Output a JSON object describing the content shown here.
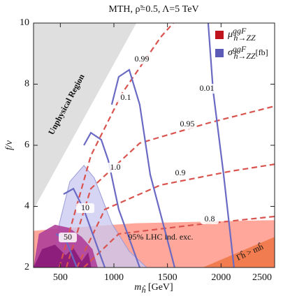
{
  "chart_data": {
    "type": "contour",
    "title": "MTH, ρ̃=0.5, Λ=5 TeV",
    "x_label": {
      "main": "m",
      "sub": "ĥ",
      "unit": " [GeV]"
    },
    "y_label": "f/v",
    "xlim": [
      250,
      2500
    ],
    "xticks": [
      500,
      1000,
      1500,
      2000,
      2500
    ],
    "ylim": [
      2,
      10
    ],
    "yticks": [
      2,
      4,
      6,
      8,
      10
    ],
    "legend": [
      {
        "color": "#c0141c",
        "main": "μ",
        "sup": "ggF",
        "sub": "h→ZZ",
        "unit": ""
      },
      {
        "color": "#5c5cb8",
        "main": "σ",
        "sup": "ggF",
        "sub": "ĥ→ZZ",
        "unit": "[fb]"
      }
    ],
    "regions": [
      {
        "color": "#dcdcdc",
        "x": [
          250,
          1210,
          250
        ],
        "y": [
          10,
          10,
          3.9
        ]
      },
      {
        "color": "#ff9d8f",
        "x": [
          250,
          250,
          600,
          1200,
          2500,
          2500
        ],
        "y": [
          2,
          3.2,
          3.3,
          3.45,
          3.55,
          2
        ]
      },
      {
        "color": "#c8c8f0",
        "x": [
          426,
          491,
          589,
          720,
          817,
          980,
          1143,
          1307
        ],
        "y": [
          2,
          3.44,
          4.81,
          5.34,
          4.93,
          3.44,
          2.53,
          2
        ]
      },
      {
        "color": "#b0409a",
        "x": [
          250,
          300,
          450,
          580,
          700,
          800,
          850
        ],
        "y": [
          2,
          3.1,
          3.4,
          3.3,
          3.0,
          2.6,
          2
        ]
      },
      {
        "color": "#8a1a78",
        "x": [
          250,
          330,
          450,
          550,
          620,
          700,
          760,
          790
        ],
        "y": [
          2,
          2.6,
          2.75,
          2.4,
          2.65,
          2.2,
          2.5,
          2
        ]
      },
      {
        "color": "#f07848",
        "x": [
          1830,
          2500,
          2500
        ],
        "y": [
          2,
          3.0,
          2
        ]
      }
    ],
    "contours": [
      {
        "label": "0.99",
        "color": "#d9534f",
        "dashed": true,
        "x": [
          491,
          785,
          1078,
          1437,
          1554
        ],
        "y": [
          2,
          5.66,
          7.71,
          9.54,
          10
        ]
      },
      {
        "label": "0.95",
        "color": "#d9534f",
        "dashed": true,
        "x": [
          556,
          785,
          1241,
          1893,
          2500
        ],
        "y": [
          2,
          4.58,
          6.07,
          6.74,
          7.28
        ]
      },
      {
        "label": "0.9",
        "color": "#d9534f",
        "dashed": true,
        "x": [
          654,
          915,
          1437,
          2089,
          2500
        ],
        "y": [
          2,
          3.9,
          4.7,
          5.15,
          5.38
        ]
      },
      {
        "label": "0.8",
        "color": "#d9534f",
        "dashed": true,
        "x": [
          719,
          1045,
          1763,
          2500
        ],
        "y": [
          2,
          3.1,
          3.4,
          3.67
        ]
      },
      {
        "label": "0.01",
        "color": "#6a6ac4",
        "dashed": false,
        "x": [
          2121,
          2024,
          1926,
          1880
        ],
        "y": [
          2,
          5.04,
          7.78,
          10
        ]
      },
      {
        "label": "0.1",
        "color": "#6a6ac4",
        "dashed": false,
        "x": [
          1567,
          1339,
          1241,
          1143,
          1045,
          980
        ],
        "y": [
          2,
          5.04,
          7.33,
          8.47,
          8.24,
          7.33
        ]
      },
      {
        "label": "1.0",
        "color": "#6a6ac4",
        "dashed": false,
        "x": [
          1241,
          1045,
          948,
          882,
          785,
          720
        ],
        "y": [
          2,
          3.9,
          5.5,
          6.18,
          6.41,
          6.0
        ]
      },
      {
        "label": "10",
        "color": "#6a6ac4",
        "dashed": false,
        "x": [
          915,
          719,
          622,
          530
        ],
        "y": [
          2,
          3.9,
          4.58,
          4.4
        ]
      },
      {
        "label": "50",
        "color": "#6a6ac4",
        "dashed": false,
        "x": [
          654,
          556,
          460
        ],
        "y": [
          2,
          2.87,
          3.1
        ]
      }
    ],
    "annotations": [
      "Unphysical Region",
      "95% LHC ind. exc.",
      "Γĥ > mĥ"
    ]
  }
}
